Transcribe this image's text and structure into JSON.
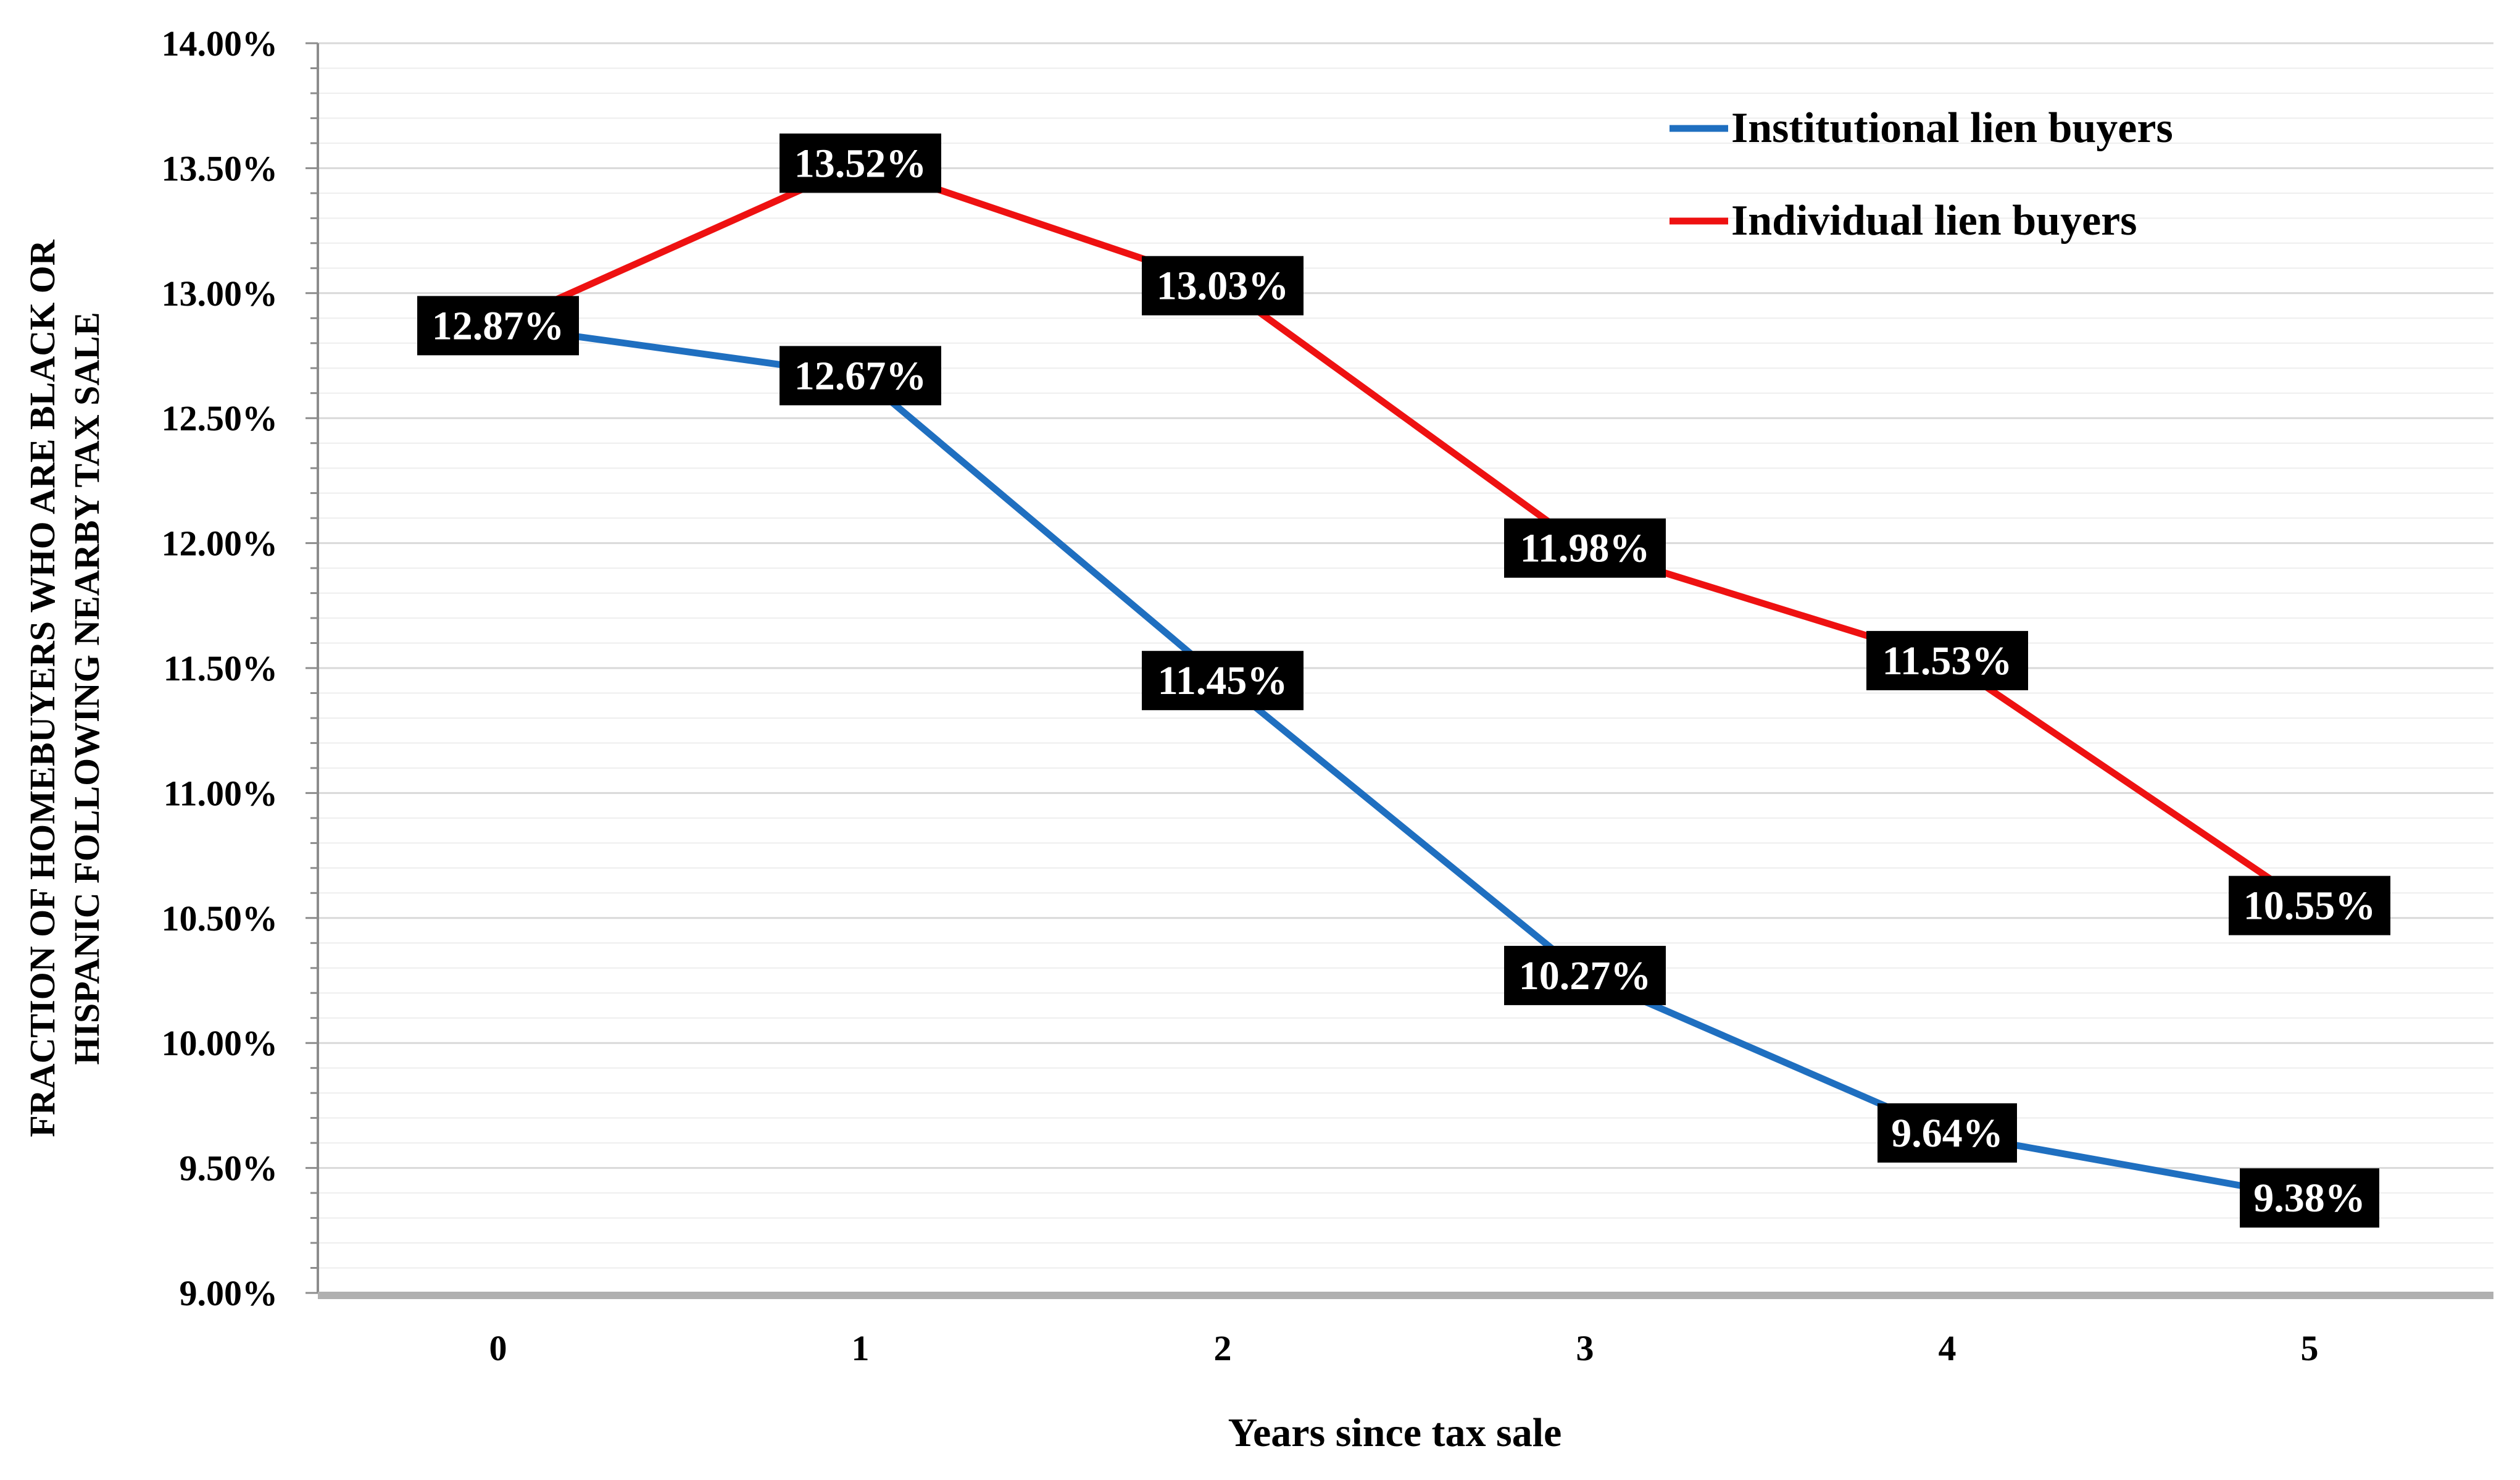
{
  "chart_data": {
    "type": "line",
    "title": "",
    "xlabel": "Years since tax sale",
    "ylabel": "FRACTION OF HOMEBUYERS WHO ARE BLACK OR HISPANIC FOLLOWING NEARBY TAX SALE",
    "ylabel_lines": [
      "FRACTION OF HOMEBUYERS WHO ARE BLACK OR",
      "HISPANIC FOLLOWING NEARBY TAX SALE"
    ],
    "x": [
      0,
      1,
      2,
      3,
      4,
      5
    ],
    "x_tick_labels": [
      "0",
      "1",
      "2",
      "3",
      "4",
      "5"
    ],
    "ylim": [
      9.0,
      14.0
    ],
    "y_ticks": [
      9.0,
      9.5,
      10.0,
      10.5,
      11.0,
      11.5,
      12.0,
      12.5,
      13.0,
      13.5,
      14.0
    ],
    "y_tick_labels": [
      "9.00%",
      "9.50%",
      "10.00%",
      "10.50%",
      "11.00%",
      "11.50%",
      "12.00%",
      "12.50%",
      "13.00%",
      "13.50%",
      "14.00%"
    ],
    "grid": true,
    "legend_position": "top-right",
    "series": [
      {
        "name": "Institutional lien buyers",
        "color": "#1f6fc0",
        "values": [
          12.87,
          12.67,
          11.45,
          10.27,
          9.64,
          9.38
        ],
        "labels": [
          "12.87%",
          "12.67%",
          "11.45%",
          "10.27%",
          "9.64%",
          "9.38%"
        ]
      },
      {
        "name": "Individual lien buyers",
        "color": "#ee1111",
        "values": [
          12.87,
          13.52,
          13.03,
          11.98,
          11.53,
          10.55
        ],
        "labels": [
          "",
          "13.52%",
          "13.03%",
          "11.98%",
          "11.53%",
          "10.55%"
        ]
      }
    ]
  }
}
